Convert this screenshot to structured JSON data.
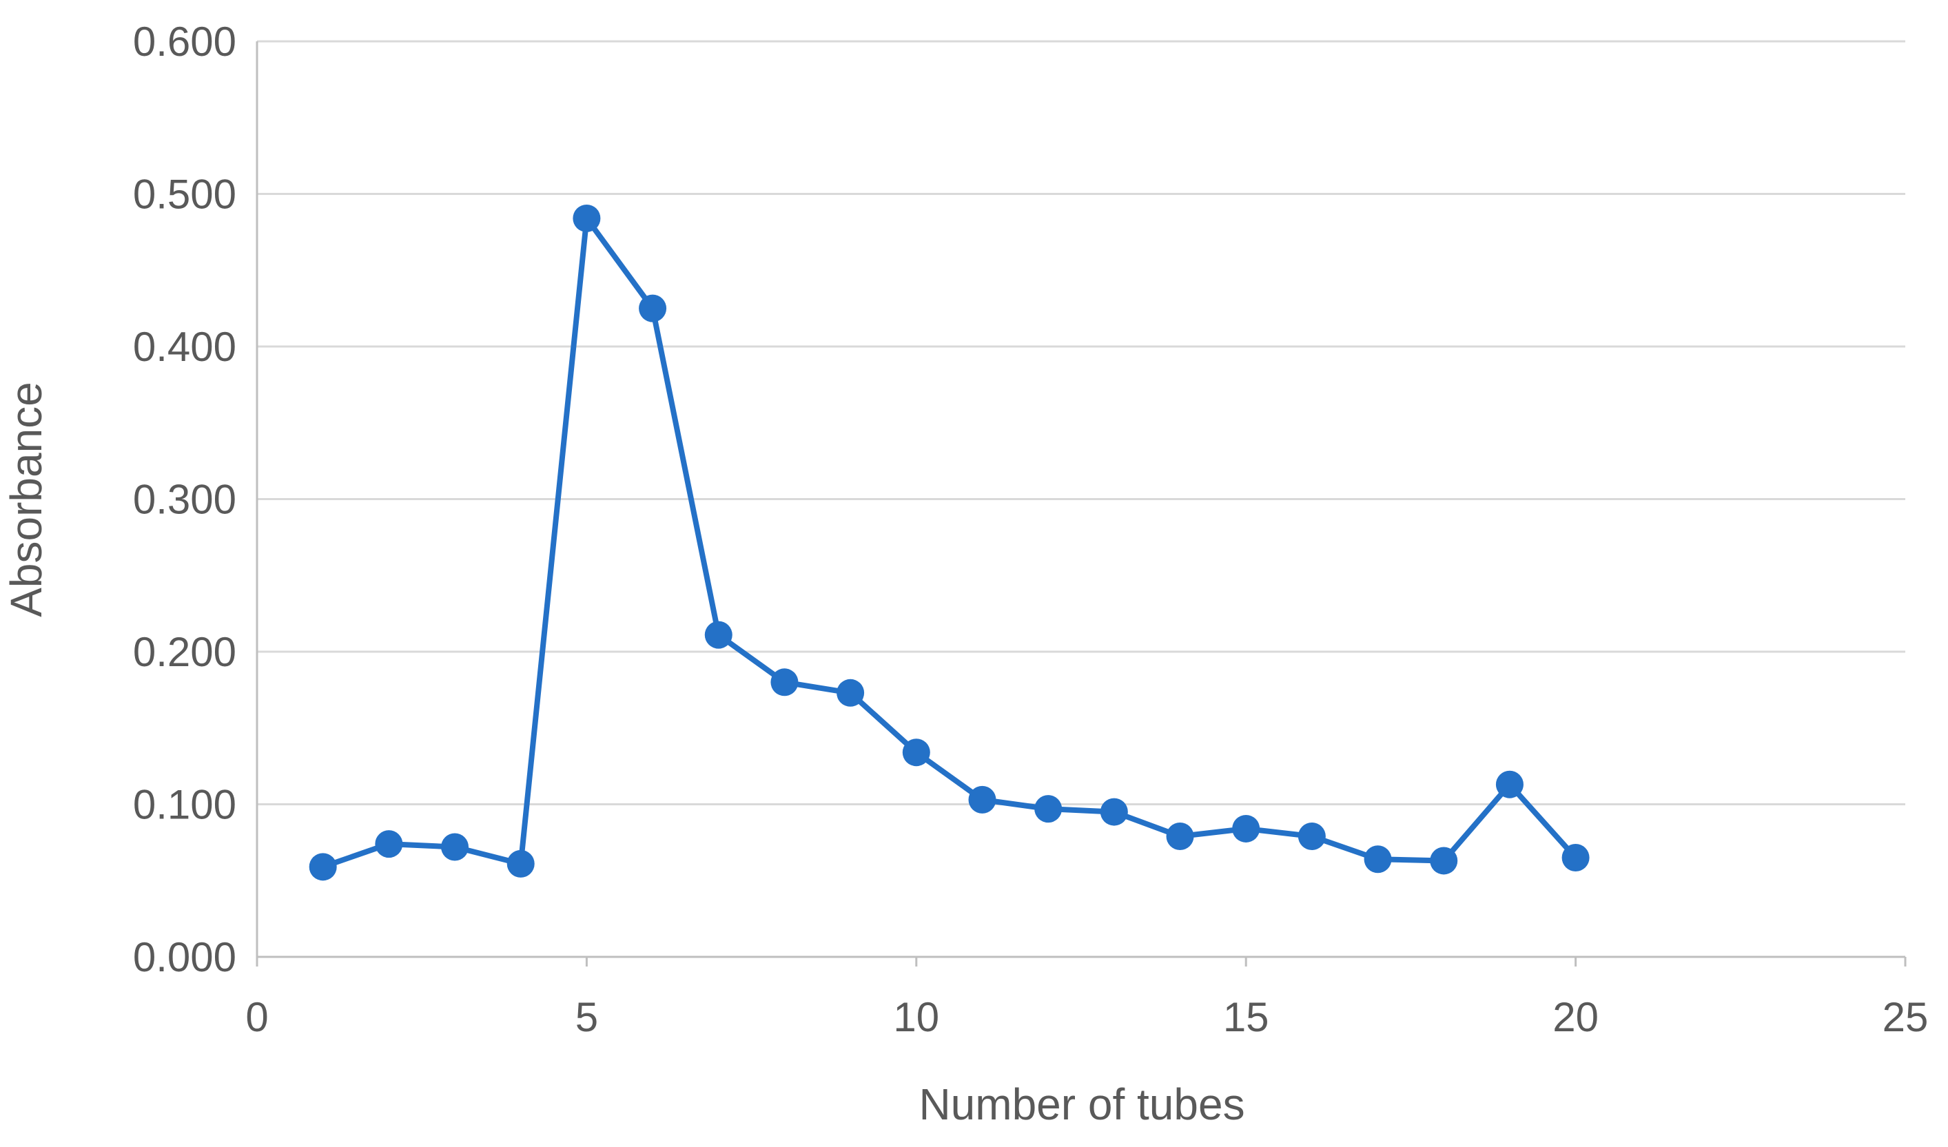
{
  "chart_data": {
    "type": "scatter",
    "title": "",
    "xlabel": "Number of tubes",
    "ylabel": "Absorbance",
    "xlim": [
      0,
      25
    ],
    "ylim": [
      0,
      0.6
    ],
    "x_ticks": [
      0,
      5,
      10,
      15,
      20,
      25
    ],
    "x_tick_labels": [
      "0",
      "5",
      "10",
      "15",
      "20",
      "25"
    ],
    "y_ticks": [
      0,
      0.1,
      0.2,
      0.3,
      0.4,
      0.5,
      0.6
    ],
    "y_tick_labels": [
      "0.000",
      "0.100",
      "0.200",
      "0.300",
      "0.400",
      "0.500",
      "0.600"
    ],
    "grid": "horizontal",
    "legend": "none",
    "line_style": "straight lines with markers",
    "series": [
      {
        "color": "#2471c7",
        "x": [
          1,
          2,
          3,
          4,
          5,
          6,
          7,
          8,
          9,
          10,
          11,
          12,
          13,
          14,
          15,
          16,
          17,
          18,
          19,
          20
        ],
        "y": [
          0.059,
          0.074,
          0.072,
          0.061,
          0.484,
          0.425,
          0.211,
          0.18,
          0.173,
          0.134,
          0.103,
          0.097,
          0.095,
          0.079,
          0.084,
          0.079,
          0.064,
          0.063,
          0.113,
          0.065
        ]
      }
    ]
  },
  "colors": {
    "gridline": "#d9d9d9",
    "axis_line": "#bfbfbf",
    "tick_text": "#595959",
    "series": "#2471c7"
  }
}
